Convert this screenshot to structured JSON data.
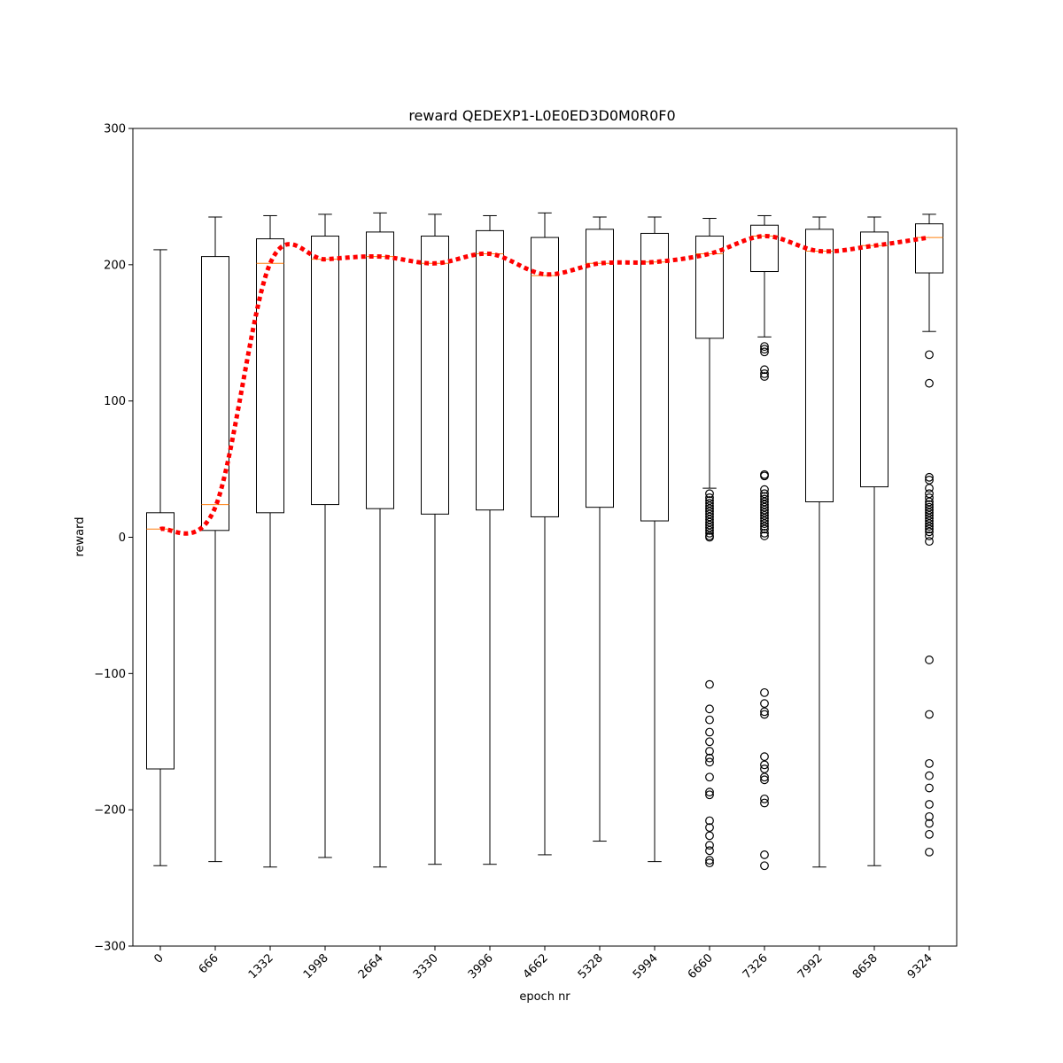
{
  "chart_data": {
    "type": "box",
    "title": "reward QEDEXP1-L0E0ED3D0M0R0F0",
    "xlabel": "epoch nr",
    "ylabel": "reward",
    "ylim": [
      -300,
      300
    ],
    "yticks": [
      -300,
      -200,
      -100,
      0,
      100,
      200,
      300
    ],
    "yticklabels": [
      "−300",
      "−200",
      "−100",
      "0",
      "100",
      "200",
      "300"
    ],
    "categories": [
      "0",
      "666",
      "1332",
      "1998",
      "2664",
      "3330",
      "3996",
      "4662",
      "5328",
      "5994",
      "6660",
      "7326",
      "7992",
      "8658",
      "9324"
    ],
    "boxes": [
      {
        "whislo": -241,
        "q1": -170,
        "med": 6,
        "q3": 18,
        "whishi": 211,
        "fliers": []
      },
      {
        "whislo": -238,
        "q1": 5,
        "med": 24,
        "q3": 206,
        "whishi": 235,
        "fliers": []
      },
      {
        "whislo": -242,
        "q1": 18,
        "med": 201,
        "q3": 219,
        "whishi": 236,
        "fliers": []
      },
      {
        "whislo": -235,
        "q1": 24,
        "med": 204,
        "q3": 221,
        "whishi": 237,
        "fliers": []
      },
      {
        "whislo": -242,
        "q1": 21,
        "med": 206,
        "q3": 224,
        "whishi": 238,
        "fliers": []
      },
      {
        "whislo": -240,
        "q1": 17,
        "med": 201,
        "q3": 221,
        "whishi": 237,
        "fliers": []
      },
      {
        "whislo": -240,
        "q1": 20,
        "med": 208,
        "q3": 225,
        "whishi": 236,
        "fliers": []
      },
      {
        "whislo": -233,
        "q1": 15,
        "med": 192,
        "q3": 220,
        "whishi": 238,
        "fliers": []
      },
      {
        "whislo": -223,
        "q1": 22,
        "med": 201,
        "q3": 226,
        "whishi": 235,
        "fliers": []
      },
      {
        "whislo": -238,
        "q1": 12,
        "med": 202,
        "q3": 223,
        "whishi": 235,
        "fliers": []
      },
      {
        "whislo": 36,
        "q1": 146,
        "med": 208,
        "q3": 221,
        "whishi": 234,
        "fliers": [
          32,
          29,
          27,
          25,
          23,
          21,
          19,
          17,
          15,
          13,
          11,
          9,
          7,
          5,
          3,
          1,
          0,
          -108,
          -126,
          -134,
          -143,
          -150,
          -157,
          -162,
          -165,
          -176,
          -187,
          -189,
          -208,
          -213,
          -219,
          -226,
          -230,
          -237,
          -239
        ]
      },
      {
        "whislo": 147,
        "q1": 195,
        "med": 221,
        "q3": 229,
        "whishi": 236,
        "fliers": [
          140,
          138,
          136,
          123,
          120,
          118,
          46,
          45,
          35,
          32,
          30,
          28,
          26,
          24,
          22,
          20,
          18,
          16,
          14,
          12,
          10,
          8,
          6,
          3,
          1,
          -114,
          -122,
          -128,
          -130,
          -161,
          -167,
          -170,
          -176,
          -178,
          -192,
          -195,
          -233,
          -241
        ]
      },
      {
        "whislo": -242,
        "q1": 26,
        "med": 210,
        "q3": 226,
        "whishi": 235,
        "fliers": []
      },
      {
        "whislo": -241,
        "q1": 37,
        "med": 214,
        "q3": 224,
        "whishi": 235,
        "fliers": []
      },
      {
        "whislo": 151,
        "q1": 194,
        "med": 220,
        "q3": 230,
        "whishi": 237,
        "fliers": [
          134,
          113,
          44,
          42,
          36,
          32,
          29,
          26,
          24,
          22,
          20,
          18,
          16,
          14,
          12,
          10,
          8,
          6,
          4,
          1,
          -3,
          -90,
          -130,
          -166,
          -175,
          -184,
          -196,
          -205,
          -210,
          -218,
          -231
        ]
      }
    ],
    "mean_line": {
      "color": "#ff0000",
      "style": "dotted",
      "values": [
        6,
        22,
        201,
        204,
        206,
        201,
        208,
        193,
        201,
        202,
        208,
        221,
        210,
        214,
        220
      ]
    },
    "colors": {
      "box": "#000000",
      "median": "#ff7f0e",
      "mean_line": "#ff0000",
      "flier": "#000000"
    },
    "grid": false,
    "legend": "none"
  }
}
